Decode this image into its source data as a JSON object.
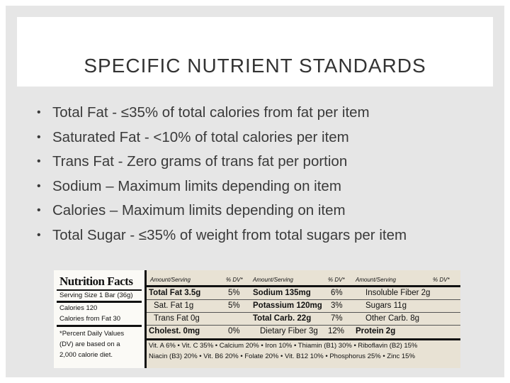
{
  "slide": {
    "title": "SPECIFIC NUTRIENT STANDARDS",
    "bullet_glyph": "•",
    "bullets": [
      "Total Fat - ≤35% of total calories from fat per item",
      "Saturated Fat - <10% of total calories per item",
      "Trans Fat - Zero grams of trans fat per portion",
      "Sodium – Maximum limits depending on item",
      "Calories – Maximum limits depending on item",
      "Total Sugar - ≤35% of weight from total sugars per item"
    ]
  },
  "nutrition_label": {
    "title": "Nutrition Facts",
    "serving_size": "Serving Size 1 Bar (36g)",
    "calories": "Calories 120",
    "calories_fat": "Calories from Fat 30",
    "note_1": "*Percent Daily Values",
    "note_2": "(DV) are based on a",
    "note_3": "2,000 calorie diet.",
    "header_amount": "Amount/Serving",
    "header_dv": "% DV*",
    "rows": [
      {
        "c1": "Total Fat 3.5g",
        "c2": "5%",
        "c3": "Sodium 135mg",
        "c4": "6%",
        "c5": "Insoluble Fiber 2g"
      },
      {
        "c1": "Sat. Fat 1g",
        "c2": "5%",
        "c3": "Potassium 120mg",
        "c4": "3%",
        "c5": "Sugars 11g"
      },
      {
        "c1": "Trans Fat 0g",
        "c2": "",
        "c3": "Total Carb. 22g",
        "c4": "7%",
        "c5": "Other Carb. 8g"
      },
      {
        "c1": "Cholest. 0mg",
        "c2": "0%",
        "c3": "Dietary Fiber 3g",
        "c4": "12%",
        "c5": "Protein 2g"
      }
    ],
    "vitamins_1": "Vit. A 6% • Vit. C 35% • Calcium 20% • Iron 10% • Thiamin (B1) 30% • Riboflavin (B2) 15%",
    "vitamins_2": "Niacin (B3) 20% • Vit. B6 20% • Folate 20% • Vit. B12 10% • Phosphorus 25% • Zinc 15%"
  }
}
